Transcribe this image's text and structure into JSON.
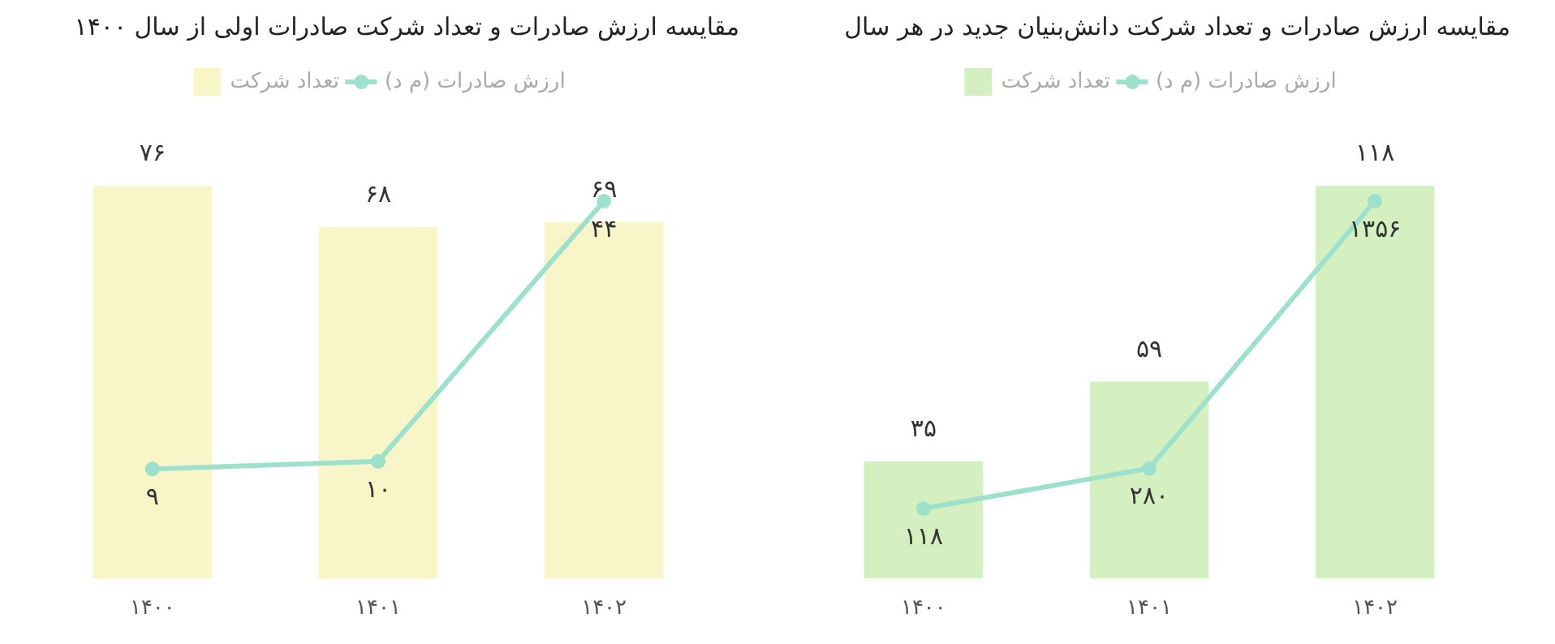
{
  "chart_data": [
    {
      "type": "bar",
      "title": "مقایسه ارزش صادرات و تعداد شرکت صادرات اولی از سال ۱۴۰۰",
      "categories": [
        "۱۴۰۰",
        "۱۴۰۱",
        "۱۴۰۲"
      ],
      "legend": "top",
      "series": [
        {
          "name": "تعداد شرکت",
          "color": "#f8f5c9",
          "values": [
            76,
            68,
            69
          ],
          "value_labels": [
            "۷۶",
            "۶۸",
            "۶۹"
          ]
        },
        {
          "name": "ارزش صادرات (م د)",
          "type": "line",
          "axis": "y2",
          "color": "#9de0cc",
          "marker": "circle",
          "values": [
            9,
            10,
            44
          ],
          "value_labels": [
            "۹",
            "۱۰",
            "۴۴"
          ]
        }
      ]
    },
    {
      "type": "bar",
      "title": "مقایسه ارزش صادرات و تعداد شرکت دانش‌بنیان جدید در هر سال",
      "categories": [
        "۱۴۰۰",
        "۱۴۰۱",
        "۱۴۰۲"
      ],
      "legend": "top",
      "series": [
        {
          "name": "تعداد شرکت",
          "color": "#d5f0c0",
          "values": [
            35,
            59,
            118
          ],
          "value_labels": [
            "۳۵",
            "۵۹",
            "۱۱۸"
          ]
        },
        {
          "name": "ارزش صادرات (م د)",
          "type": "line",
          "axis": "y2",
          "color": "#9de0cc",
          "marker": "circle",
          "values": [
            118,
            280,
            1356
          ],
          "value_labels": [
            "۱۱۸",
            "۲۸۰",
            "۱۳۵۶"
          ]
        }
      ]
    }
  ]
}
